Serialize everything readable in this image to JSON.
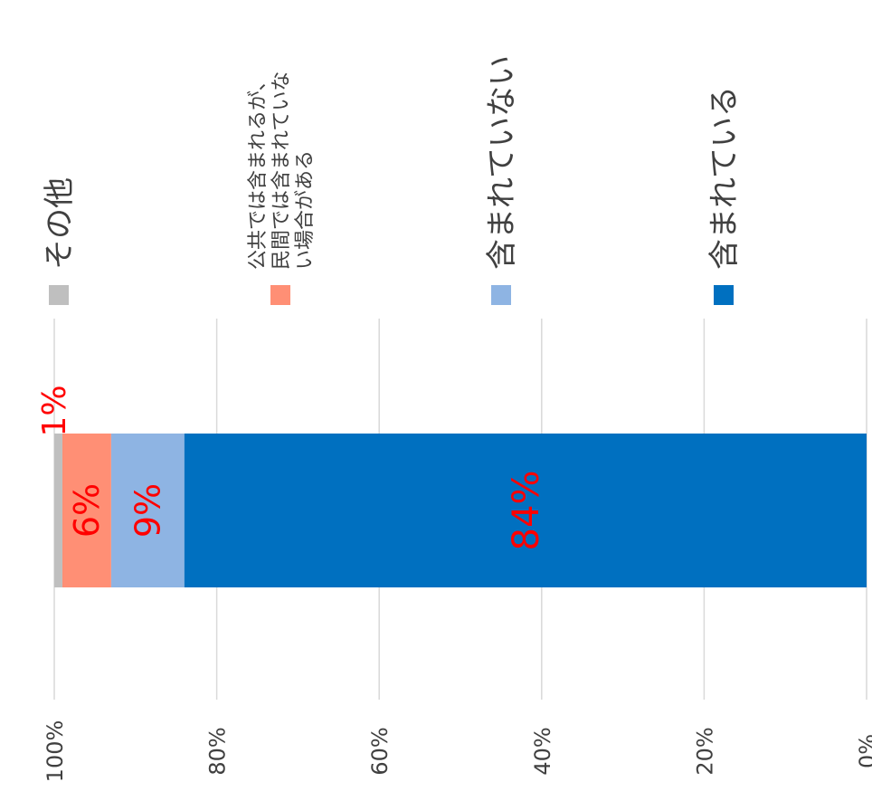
{
  "chart_data": {
    "type": "bar",
    "stacked": true,
    "orientation": "horizontal",
    "rotated": "90deg clockwise",
    "xlim": [
      0,
      100
    ],
    "x_axis_direction": "reversed",
    "grid": true,
    "legend_position": "top",
    "tick_labels": [
      "0%",
      "20%",
      "40%",
      "60%",
      "80%",
      "100%"
    ],
    "tick_values": [
      0,
      20,
      40,
      60,
      80,
      100
    ],
    "series": [
      {
        "name": "含まれている",
        "value": 84,
        "label": "84%",
        "color": "#0070C0"
      },
      {
        "name": "含まれていない",
        "value": 9,
        "label": "9%",
        "color": "#8EB4E3"
      },
      {
        "name": "公共では含まれるが、民間では含まれていない場合がある",
        "value": 6,
        "label": "6%",
        "color": "#FF8F75"
      },
      {
        "name": "その他",
        "value": 1,
        "label": "1%",
        "color": "#BFBFBF"
      }
    ],
    "legend_lines": [
      [
        "含まれている"
      ],
      [
        "含まれていない"
      ],
      [
        "公共では含まれるが、",
        "民間では含まれていな",
        "い場合がある"
      ],
      [
        "その他"
      ]
    ],
    "data_label_color": "#FF0000"
  }
}
